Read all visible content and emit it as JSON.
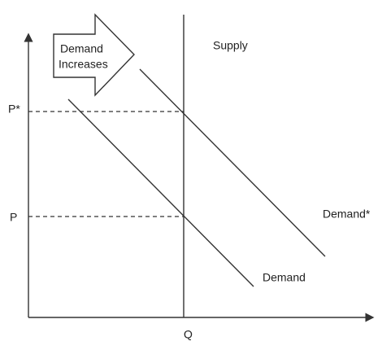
{
  "arrow_label": {
    "lines": [
      "Demand",
      "Increases"
    ]
  },
  "curves": {
    "supply": "Supply",
    "demand_new": "Demand*",
    "demand": "Demand"
  },
  "axis": {
    "price_new": "P*",
    "price": "P",
    "quantity": "Q"
  }
}
